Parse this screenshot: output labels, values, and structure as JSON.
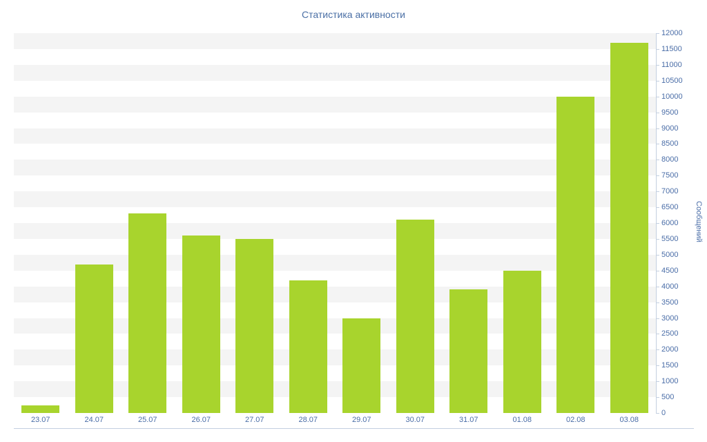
{
  "chart_data": {
    "type": "bar",
    "title": "Статистика активности",
    "xlabel": "",
    "ylabel": "Сообщений",
    "categories": [
      "23.07",
      "24.07",
      "25.07",
      "26.07",
      "27.07",
      "28.07",
      "29.07",
      "30.07",
      "31.07",
      "01.08",
      "02.08",
      "03.08"
    ],
    "values": [
      250,
      4700,
      6300,
      5600,
      5500,
      4200,
      3000,
      6100,
      3900,
      4500,
      10000,
      11700
    ],
    "ylim": [
      0,
      12000
    ],
    "ytick_step": 500,
    "yticks": [
      0,
      500,
      1000,
      1500,
      2000,
      2500,
      3000,
      3500,
      4000,
      4500,
      5000,
      5500,
      6000,
      6500,
      7000,
      7500,
      8000,
      8500,
      9000,
      9500,
      10000,
      10500,
      11000,
      11500,
      12000
    ],
    "legend_position": "none",
    "grid": "alternating-horizontal-bands",
    "y_axis_side": "right",
    "colors": {
      "bar": "#a8d42d",
      "title": "#4a6fa5",
      "axis_label": "#4a6da7",
      "axis_line": "#c3cfe0",
      "band": "#f4f4f4",
      "background": "#ffffff"
    }
  }
}
